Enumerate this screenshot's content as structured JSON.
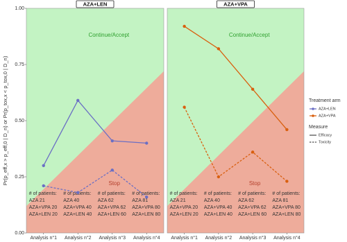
{
  "y_label": "Pr(p_eff,x > p_eff,0 | D_n) or Pr(p_tox,x < p_tox,0 | D_n)",
  "legend": {
    "treatment_title": "Treatment arm",
    "measure_title": "Measure"
  },
  "patients": {
    "heading": "# of patients:",
    "rows": [
      [
        "AZA 21",
        "AZA+VPA 20",
        "AZA+LEN 20"
      ],
      [
        "AZA 40",
        "AZA+VPA 40",
        "AZA+LEN 40"
      ],
      [
        "AZA 62",
        "AZA+VPA 62",
        "AZA+LEN 60"
      ],
      [
        "AZA 81",
        "AZA+VPA 80",
        "AZA+LEN 80"
      ]
    ]
  },
  "chart_data": [
    {
      "type": "line",
      "title": "AZA+LEN",
      "color": "#6b6fc4",
      "categories": [
        "Analysis n°1",
        "Analysis n°2",
        "Analysis n°3",
        "Analysis n°4"
      ],
      "series": [
        {
          "name": "Efficacy",
          "dashed": false,
          "values": [
            0.3,
            0.59,
            0.41,
            0.4
          ]
        },
        {
          "name": "Toxicity",
          "dashed": true,
          "values": [
            0.21,
            0.18,
            0.28,
            0.16
          ]
        }
      ],
      "ylim": [
        0,
        1
      ],
      "yticks": [
        {
          "value": 0,
          "label": "0.00"
        },
        0.25,
        {
          "value": 0.5,
          "label": "0.50"
        },
        0.75,
        {
          "value": 1,
          "label": "1.00"
        }
      ],
      "boundary": [
        0.12,
        0.72
      ],
      "upper_label": "Continue/Accept",
      "lower_label": "Stop"
    },
    {
      "type": "line",
      "title": "AZA+VPA",
      "color": "#d95f0e",
      "categories": [
        "Analysis n°1",
        "Analysis n°2",
        "Analysis n°3",
        "Analysis n°4"
      ],
      "series": [
        {
          "name": "Efficacy",
          "dashed": false,
          "values": [
            0.92,
            0.82,
            0.64,
            0.46
          ]
        },
        {
          "name": "Toxicity",
          "dashed": true,
          "values": [
            0.56,
            0.25,
            0.36,
            0.23
          ]
        }
      ],
      "ylim": [
        0,
        1
      ],
      "yticks": [
        {
          "value": 0,
          "label": "0.00"
        },
        0.25,
        {
          "value": 0.5,
          "label": "0.50"
        },
        0.75,
        {
          "value": 1,
          "label": "1.00"
        }
      ],
      "boundary": [
        0.12,
        0.72
      ],
      "upper_label": "Continue/Accept",
      "lower_label": "Stop"
    }
  ]
}
